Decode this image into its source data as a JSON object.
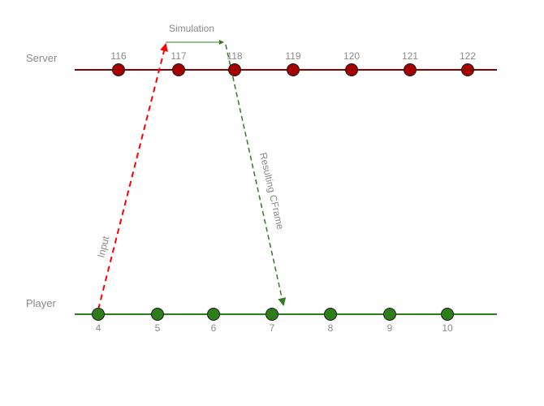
{
  "lanes": {
    "server": {
      "label": "Server",
      "line_color": "#8b0000",
      "dot_fill": "#a30000",
      "ticks": [
        "116",
        "117",
        "118",
        "119",
        "120",
        "121",
        "122"
      ]
    },
    "player": {
      "label": "Player",
      "line_color": "#2e7d1e",
      "dot_fill": "#2f7d1a",
      "ticks": [
        "4",
        "5",
        "6",
        "7",
        "8",
        "9",
        "10"
      ]
    }
  },
  "arrows": {
    "input": {
      "label": "Input",
      "color": "#ff0000",
      "from_lane": "player",
      "from_tick": "4"
    },
    "simulation": {
      "label": "Simulation",
      "color": "#2e7d1e"
    },
    "result": {
      "label": "Resulting CFrame",
      "color": "#2e7d1e",
      "to_lane": "player",
      "to_tick": "7"
    }
  }
}
